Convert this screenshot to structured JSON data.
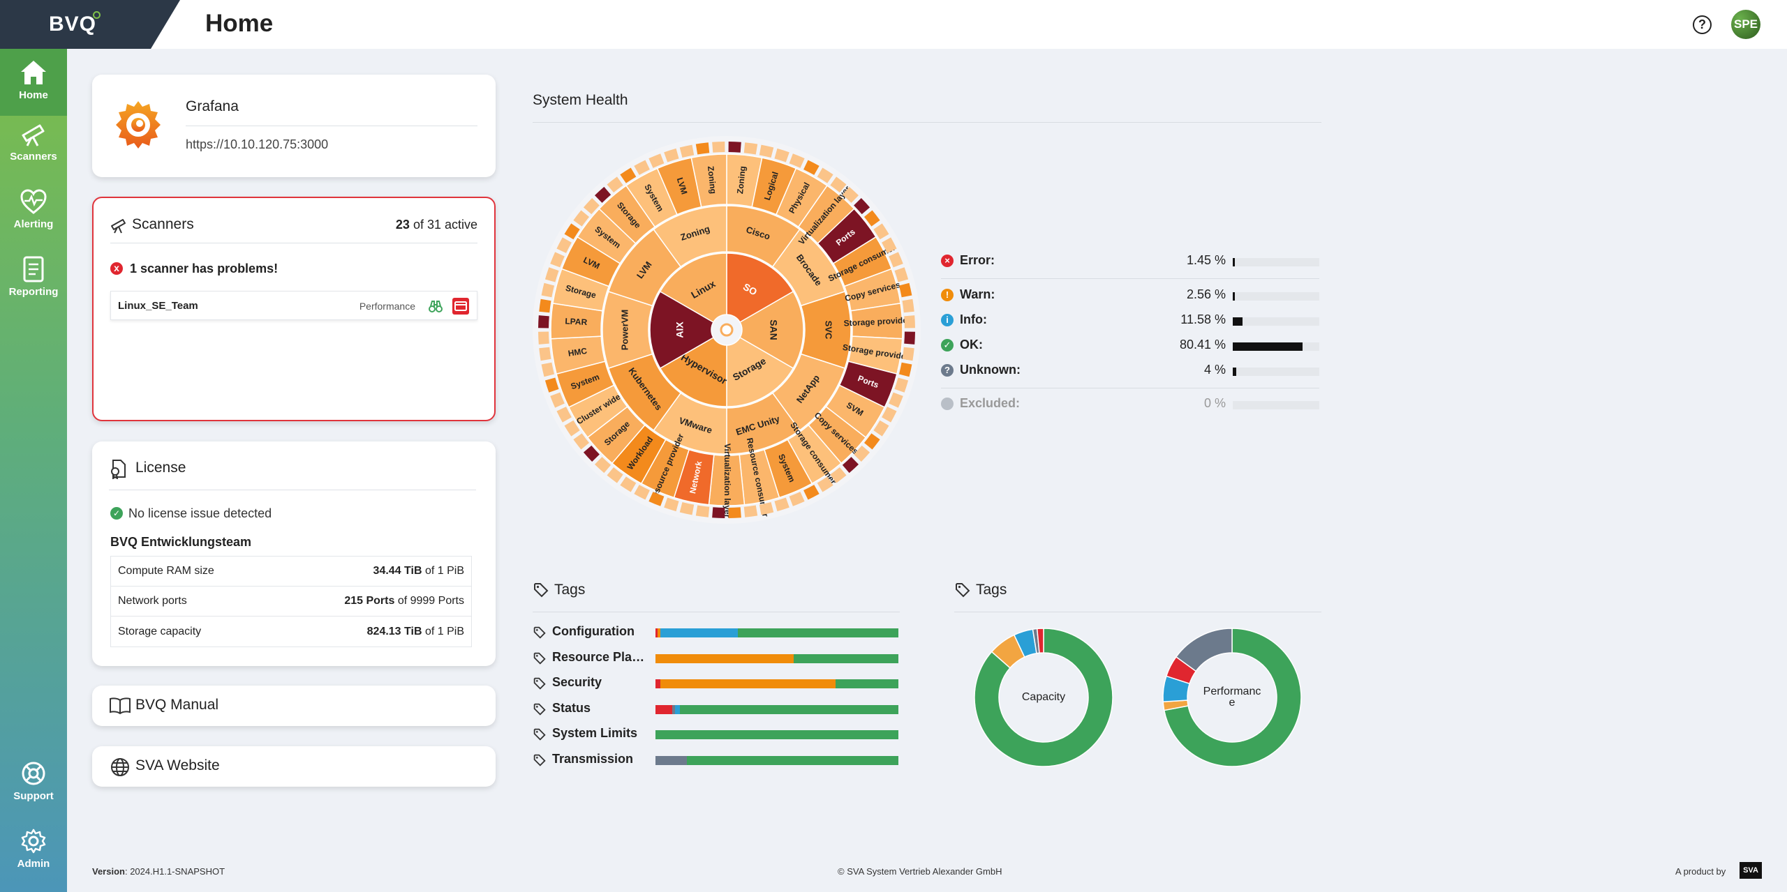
{
  "app": {
    "logo": "BVQ",
    "page_title": "Home",
    "user_initials": "SPE",
    "help_glyph": "?"
  },
  "sidebar": {
    "items": [
      {
        "label": "Home",
        "icon": "home-icon",
        "active": true
      },
      {
        "label": "Scanners",
        "icon": "telescope-icon",
        "active": false
      },
      {
        "label": "Alerting",
        "icon": "heart-pulse-icon",
        "active": false
      },
      {
        "label": "Reporting",
        "icon": "report-icon",
        "active": false
      },
      {
        "label": "Support",
        "icon": "lifebuoy-icon",
        "active": false
      },
      {
        "label": "Admin",
        "icon": "gear-icon",
        "active": false
      }
    ]
  },
  "grafana": {
    "title": "Grafana",
    "url": "https://10.10.120.75:3000"
  },
  "scanners": {
    "title": "Scanners",
    "active_count": "23",
    "active_suffix": "of 31 active",
    "problem_text": "1 scanner has problems!",
    "problem_icon": "x",
    "item": {
      "name": "Linux_SE_Team",
      "type": "Performance"
    }
  },
  "license": {
    "title": "License",
    "status": "No license issue detected",
    "status_icon": "✓",
    "team": "BVQ Entwicklungsteam",
    "rows": [
      {
        "label": "Compute RAM size",
        "value": "34.44 TiB",
        "suffix": " of 1 PiB"
      },
      {
        "label": "Network ports",
        "value": "215 Ports",
        "suffix": " of 9999 Ports"
      },
      {
        "label": "Storage capacity",
        "value": "824.13 TiB",
        "suffix": " of 1 PiB"
      }
    ]
  },
  "links": {
    "manual": "BVQ Manual",
    "website": "SVA Website"
  },
  "system_health": {
    "title": "System Health",
    "sunburst": {
      "inner": [
        "SO",
        "SAN",
        "Storage",
        "Hypervisor",
        "AIX",
        "Linux"
      ],
      "middle": [
        "Cisco",
        "Brocade",
        "SVC",
        "NetApp",
        "EMC Unity",
        "VMware",
        "Kubernetes",
        "PowerVM",
        "LVM",
        "Zoning"
      ],
      "outer": [
        "Zoning",
        "Logical",
        "Physical",
        "Virtualization layer",
        "Ports",
        "Storage consumer",
        "Copy services",
        "Storage provider",
        "Storage provider",
        "Ports",
        "SVM",
        "Copy services",
        "Storage consumer",
        "System",
        "Resource consumer",
        "Virtualization layer",
        "Network",
        "Resource provider",
        "Workload",
        "Storage",
        "Cluster wide",
        "System",
        "HMC",
        "LPAR",
        "Storage",
        "LVM",
        "System",
        "Storage",
        "System",
        "LVM",
        "Zoning"
      ]
    },
    "legend": [
      {
        "label": "Error:",
        "value": "1.45 %",
        "pct": 1.45,
        "color": "#e0262f",
        "glyph": "×"
      },
      {
        "label": "Warn:",
        "value": "2.56 %",
        "pct": 2.56,
        "color": "#f08c0a",
        "glyph": "!"
      },
      {
        "label": "Info:",
        "value": "11.58 %",
        "pct": 11.58,
        "color": "#2a9fd6",
        "glyph": "i"
      },
      {
        "label": "OK:",
        "value": "80.41 %",
        "pct": 80.41,
        "color": "#3da35a",
        "glyph": "✓"
      },
      {
        "label": "Unknown:",
        "value": "4 %",
        "pct": 4,
        "color": "#6c7a8c",
        "glyph": "?"
      },
      {
        "label": "Excluded:",
        "value": "0 %",
        "pct": 0,
        "color": "#b9bfc7",
        "glyph": ""
      }
    ]
  },
  "tags_left": {
    "title": "Tags",
    "rows": [
      {
        "label": "Configuration",
        "segments": [
          {
            "color": "#e0262f",
            "pct": 1
          },
          {
            "color": "#f08c0a",
            "pct": 1
          },
          {
            "color": "#2a9fd6",
            "pct": 32
          },
          {
            "color": "#3da35a",
            "pct": 66
          }
        ]
      },
      {
        "label": "Resource Planning",
        "segments": [
          {
            "color": "#f08c0a",
            "pct": 57
          },
          {
            "color": "#3da35a",
            "pct": 43
          }
        ]
      },
      {
        "label": "Security",
        "segments": [
          {
            "color": "#e0262f",
            "pct": 2
          },
          {
            "color": "#f08c0a",
            "pct": 72
          },
          {
            "color": "#3da35a",
            "pct": 26
          }
        ]
      },
      {
        "label": "Status",
        "segments": [
          {
            "color": "#e0262f",
            "pct": 7
          },
          {
            "color": "#6c7a8c",
            "pct": 1
          },
          {
            "color": "#2a9fd6",
            "pct": 2
          },
          {
            "color": "#3da35a",
            "pct": 90
          }
        ]
      },
      {
        "label": "System Limits",
        "segments": [
          {
            "color": "#3da35a",
            "pct": 100
          }
        ]
      },
      {
        "label": "Transmission",
        "segments": [
          {
            "color": "#6c7a8c",
            "pct": 13
          },
          {
            "color": "#3da35a",
            "pct": 87
          }
        ]
      }
    ]
  },
  "tags_right": {
    "title": "Tags",
    "donuts": [
      {
        "label": "Capacity",
        "segments": [
          {
            "color": "#3da35a",
            "pct": 86.5
          },
          {
            "color": "#f2a541",
            "pct": 6.5
          },
          {
            "color": "#2a9fd6",
            "pct": 4.5
          },
          {
            "color": "#6c7a8c",
            "pct": 1
          },
          {
            "color": "#e0262f",
            "pct": 1.5
          }
        ]
      },
      {
        "label": "Performance",
        "segments": [
          {
            "color": "#3da35a",
            "pct": 72
          },
          {
            "color": "#f2a541",
            "pct": 2
          },
          {
            "color": "#2a9fd6",
            "pct": 6
          },
          {
            "color": "#e0262f",
            "pct": 5
          },
          {
            "color": "#6c7a8c",
            "pct": 15
          }
        ]
      }
    ]
  },
  "footer": {
    "version_label": "Version",
    "version": ": 2024.H1.1-SNAPSHOT",
    "copyright": "© SVA System Vertrieb Alexander GmbH",
    "product_by": "A product by",
    "brand": "SVA"
  }
}
